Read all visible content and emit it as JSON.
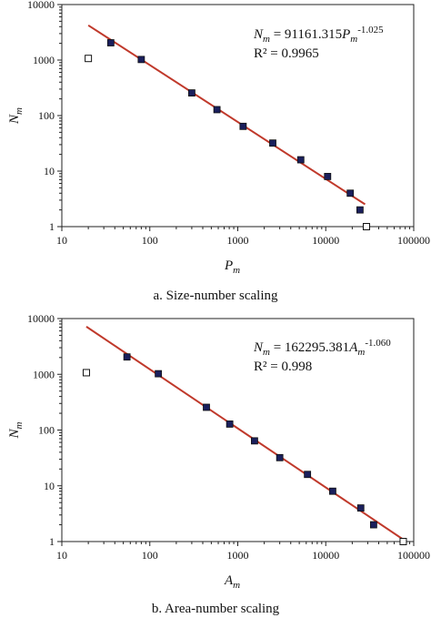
{
  "chart_data": [
    {
      "type": "scatter",
      "panel": "a",
      "caption": "a. Size-number scaling",
      "xlabel": {
        "main": "P",
        "sub": "m"
      },
      "ylabel": {
        "main": "N",
        "sub": "m"
      },
      "x_scale": "log",
      "y_scale": "log",
      "xlim": [
        10,
        100000
      ],
      "ylim": [
        1,
        10000
      ],
      "x_tick_labels": [
        "10",
        "100",
        "1000",
        "10000",
        "100000"
      ],
      "y_tick_labels": [
        "1",
        "10",
        "100",
        "1000",
        "10000"
      ],
      "equation": {
        "lhs": "N",
        "lhs_sub": "m",
        "mid": " = 91161.315",
        "var": "P",
        "var_sub": "m",
        "exp": "-1.025"
      },
      "r2": "R² = 0.9965",
      "fit": {
        "coefficient": 91161.315,
        "exponent": -1.025,
        "x_range": [
          20,
          28000
        ],
        "color": "#c0392b"
      },
      "points_filled": [
        {
          "x": 36,
          "y": 2048
        },
        {
          "x": 80,
          "y": 1024
        },
        {
          "x": 300,
          "y": 256
        },
        {
          "x": 580,
          "y": 128
        },
        {
          "x": 1150,
          "y": 64
        },
        {
          "x": 2500,
          "y": 32
        },
        {
          "x": 5200,
          "y": 16
        },
        {
          "x": 10500,
          "y": 8
        },
        {
          "x": 19000,
          "y": 4
        },
        {
          "x": 24500,
          "y": 2
        }
      ],
      "points_open": [
        {
          "x": 20,
          "y": 1070
        },
        {
          "x": 29000,
          "y": 1
        }
      ]
    },
    {
      "type": "scatter",
      "panel": "b",
      "caption": "b. Area-number scaling",
      "xlabel": {
        "main": "A",
        "sub": "m"
      },
      "ylabel": {
        "main": "N",
        "sub": "m"
      },
      "x_scale": "log",
      "y_scale": "log",
      "xlim": [
        10,
        100000
      ],
      "ylim": [
        1,
        10000
      ],
      "x_tick_labels": [
        "10",
        "100",
        "1000",
        "10000",
        "100000"
      ],
      "y_tick_labels": [
        "1",
        "10",
        "100",
        "1000",
        "10000"
      ],
      "equation": {
        "lhs": "N",
        "lhs_sub": "m",
        "mid": " = 162295.381",
        "var": "A",
        "var_sub": "m",
        "exp": "-1.060"
      },
      "r2": "R² = 0.998",
      "fit": {
        "coefficient": 162295.381,
        "exponent": -1.06,
        "x_range": [
          19,
          76000
        ],
        "color": "#c0392b"
      },
      "points_filled": [
        {
          "x": 55,
          "y": 2048
        },
        {
          "x": 125,
          "y": 1024
        },
        {
          "x": 440,
          "y": 256
        },
        {
          "x": 810,
          "y": 128
        },
        {
          "x": 1550,
          "y": 64
        },
        {
          "x": 3000,
          "y": 32
        },
        {
          "x": 6200,
          "y": 16
        },
        {
          "x": 12000,
          "y": 8
        },
        {
          "x": 25000,
          "y": 4
        },
        {
          "x": 35000,
          "y": 2
        }
      ],
      "points_open": [
        {
          "x": 19,
          "y": 1070
        },
        {
          "x": 76000,
          "y": 1
        }
      ]
    }
  ]
}
